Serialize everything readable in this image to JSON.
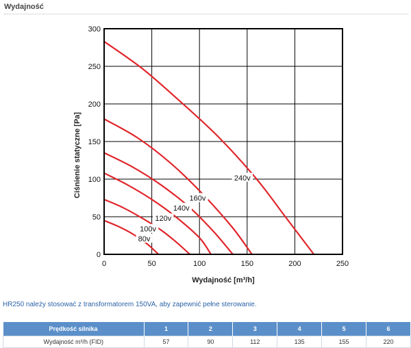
{
  "section": {
    "title": "Wydajność"
  },
  "note": "HR250 należy stosować z transformatorem 150VA, aby zapewnić pełne sterowanie.",
  "table": {
    "header_label": "Prędkość silnika",
    "speeds": [
      "1",
      "2",
      "3",
      "4",
      "5",
      "6"
    ],
    "row_label": "Wydajność m³/h (FID)",
    "values": [
      "57",
      "90",
      "112",
      "135",
      "155",
      "220"
    ]
  },
  "chart_data": {
    "type": "line",
    "xlabel": "Wydajność [m³/h]",
    "ylabel": "Ciśnienie statyczne [Pa]",
    "xlim": [
      0,
      250
    ],
    "ylim": [
      0,
      300
    ],
    "xticks": [
      0,
      50,
      100,
      150,
      200,
      250
    ],
    "yticks": [
      0,
      50,
      100,
      150,
      200,
      250,
      300
    ],
    "grid": true,
    "line_color": "#e0262b",
    "series": [
      {
        "name": "80v",
        "label_at": [
          42,
          21
        ],
        "x": [
          0,
          15,
          30,
          45,
          57
        ],
        "y": [
          45,
          37,
          27,
          14,
          0
        ]
      },
      {
        "name": "100v",
        "label_at": [
          46,
          34
        ],
        "x": [
          0,
          20,
          40,
          60,
          75,
          90
        ],
        "y": [
          73,
          62,
          48,
          32,
          17,
          0
        ]
      },
      {
        "name": "120v",
        "label_at": [
          62,
          48
        ],
        "x": [
          0,
          25,
          50,
          75,
          100,
          112
        ],
        "y": [
          108,
          92,
          73,
          50,
          22,
          0
        ]
      },
      {
        "name": "140v",
        "label_at": [
          81,
          62
        ],
        "x": [
          0,
          30,
          60,
          90,
          115,
          135
        ],
        "y": [
          135,
          116,
          92,
          62,
          30,
          0
        ]
      },
      {
        "name": "160v",
        "label_at": [
          98,
          75
        ],
        "x": [
          0,
          35,
          70,
          105,
          135,
          155
        ],
        "y": [
          180,
          155,
          121,
          78,
          35,
          0
        ]
      },
      {
        "name": "240v",
        "label_at": [
          145,
          102
        ],
        "x": [
          0,
          40,
          80,
          120,
          160,
          190,
          220
        ],
        "y": [
          283,
          247,
          203,
          156,
          100,
          50,
          0
        ]
      }
    ]
  }
}
